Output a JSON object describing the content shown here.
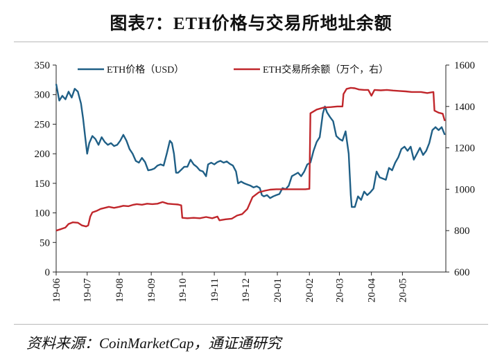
{
  "title": "图表7：ETH价格与交易所地址余额",
  "source": "资料来源：CoinMarketCap，通证通研究",
  "chart_data": {
    "type": "line",
    "x_ticks": [
      "19-06",
      "19-07",
      "19-08",
      "19-09",
      "19-10",
      "19-11",
      "19-12",
      "20-01",
      "20-02",
      "20-03",
      "20-04",
      "20-05"
    ],
    "x_range": [
      "2019-06-01",
      "2020-06-12"
    ],
    "y_left": {
      "min": 0,
      "max": 350,
      "ticks": [
        0,
        50,
        100,
        150,
        200,
        250,
        300,
        350
      ]
    },
    "y_right": {
      "min": 600,
      "max": 1600,
      "ticks": [
        600,
        800,
        1000,
        1200,
        1400,
        1600
      ]
    },
    "legend_position": "top",
    "series": [
      {
        "name": "ETH价格（USD）",
        "axis": "left",
        "color": "#1f5f86",
        "points": [
          [
            "2019-06-01",
            318
          ],
          [
            "2019-06-04",
            290
          ],
          [
            "2019-06-07",
            298
          ],
          [
            "2019-06-10",
            292
          ],
          [
            "2019-06-13",
            305
          ],
          [
            "2019-06-16",
            295
          ],
          [
            "2019-06-19",
            310
          ],
          [
            "2019-06-22",
            305
          ],
          [
            "2019-06-25",
            285
          ],
          [
            "2019-06-27",
            260
          ],
          [
            "2019-06-29",
            230
          ],
          [
            "2019-07-01",
            200
          ],
          [
            "2019-07-03",
            218
          ],
          [
            "2019-07-06",
            230
          ],
          [
            "2019-07-09",
            225
          ],
          [
            "2019-07-12",
            215
          ],
          [
            "2019-07-15",
            228
          ],
          [
            "2019-07-18",
            220
          ],
          [
            "2019-07-21",
            215
          ],
          [
            "2019-07-24",
            218
          ],
          [
            "2019-07-27",
            213
          ],
          [
            "2019-07-30",
            215
          ],
          [
            "2019-08-02",
            222
          ],
          [
            "2019-08-05",
            232
          ],
          [
            "2019-08-08",
            222
          ],
          [
            "2019-08-11",
            208
          ],
          [
            "2019-08-14",
            200
          ],
          [
            "2019-08-17",
            188
          ],
          [
            "2019-08-20",
            185
          ],
          [
            "2019-08-23",
            193
          ],
          [
            "2019-08-26",
            186
          ],
          [
            "2019-08-29",
            172
          ],
          [
            "2019-09-01",
            173
          ],
          [
            "2019-09-04",
            175
          ],
          [
            "2019-09-07",
            180
          ],
          [
            "2019-09-10",
            182
          ],
          [
            "2019-09-13",
            180
          ],
          [
            "2019-09-16",
            200
          ],
          [
            "2019-09-19",
            222
          ],
          [
            "2019-09-21",
            218
          ],
          [
            "2019-09-23",
            200
          ],
          [
            "2019-09-25",
            168
          ],
          [
            "2019-09-27",
            168
          ],
          [
            "2019-09-30",
            173
          ],
          [
            "2019-10-03",
            178
          ],
          [
            "2019-10-06",
            178
          ],
          [
            "2019-10-09",
            190
          ],
          [
            "2019-10-12",
            182
          ],
          [
            "2019-10-15",
            178
          ],
          [
            "2019-10-18",
            172
          ],
          [
            "2019-10-21",
            170
          ],
          [
            "2019-10-24",
            162
          ],
          [
            "2019-10-26",
            182
          ],
          [
            "2019-10-29",
            185
          ],
          [
            "2019-11-01",
            182
          ],
          [
            "2019-11-04",
            186
          ],
          [
            "2019-11-07",
            188
          ],
          [
            "2019-11-10",
            185
          ],
          [
            "2019-11-13",
            187
          ],
          [
            "2019-11-16",
            183
          ],
          [
            "2019-11-19",
            180
          ],
          [
            "2019-11-22",
            170
          ],
          [
            "2019-11-24",
            150
          ],
          [
            "2019-11-27",
            153
          ],
          [
            "2019-11-30",
            150
          ],
          [
            "2019-12-03",
            148
          ],
          [
            "2019-12-06",
            146
          ],
          [
            "2019-12-09",
            143
          ],
          [
            "2019-12-12",
            145
          ],
          [
            "2019-12-15",
            142
          ],
          [
            "2019-12-17",
            130
          ],
          [
            "2019-12-19",
            128
          ],
          [
            "2019-12-22",
            130
          ],
          [
            "2019-12-25",
            125
          ],
          [
            "2019-12-28",
            128
          ],
          [
            "2019-12-31",
            130
          ],
          [
            "2020-01-03",
            132
          ],
          [
            "2020-01-06",
            142
          ],
          [
            "2020-01-09",
            140
          ],
          [
            "2020-01-12",
            146
          ],
          [
            "2020-01-15",
            162
          ],
          [
            "2020-01-18",
            165
          ],
          [
            "2020-01-21",
            168
          ],
          [
            "2020-01-24",
            162
          ],
          [
            "2020-01-27",
            170
          ],
          [
            "2020-01-30",
            182
          ],
          [
            "2020-02-02",
            185
          ],
          [
            "2020-02-05",
            205
          ],
          [
            "2020-02-08",
            220
          ],
          [
            "2020-02-11",
            228
          ],
          [
            "2020-02-14",
            268
          ],
          [
            "2020-02-16",
            280
          ],
          [
            "2020-02-18",
            270
          ],
          [
            "2020-02-21",
            262
          ],
          [
            "2020-02-24",
            255
          ],
          [
            "2020-02-27",
            230
          ],
          [
            "2020-03-01",
            225
          ],
          [
            "2020-03-04",
            222
          ],
          [
            "2020-03-07",
            238
          ],
          [
            "2020-03-10",
            200
          ],
          [
            "2020-03-12",
            130
          ],
          [
            "2020-03-13",
            110
          ],
          [
            "2020-03-16",
            110
          ],
          [
            "2020-03-19",
            128
          ],
          [
            "2020-03-22",
            122
          ],
          [
            "2020-03-25",
            136
          ],
          [
            "2020-03-28",
            130
          ],
          [
            "2020-03-31",
            135
          ],
          [
            "2020-04-03",
            141
          ],
          [
            "2020-04-06",
            170
          ],
          [
            "2020-04-09",
            160
          ],
          [
            "2020-04-12",
            158
          ],
          [
            "2020-04-15",
            156
          ],
          [
            "2020-04-18",
            176
          ],
          [
            "2020-04-21",
            172
          ],
          [
            "2020-04-24",
            185
          ],
          [
            "2020-04-27",
            194
          ],
          [
            "2020-04-30",
            208
          ],
          [
            "2020-05-03",
            212
          ],
          [
            "2020-05-06",
            205
          ],
          [
            "2020-05-09",
            212
          ],
          [
            "2020-05-12",
            190
          ],
          [
            "2020-05-15",
            200
          ],
          [
            "2020-05-18",
            210
          ],
          [
            "2020-05-21",
            198
          ],
          [
            "2020-05-24",
            205
          ],
          [
            "2020-05-27",
            218
          ],
          [
            "2020-05-30",
            240
          ],
          [
            "2020-06-02",
            245
          ],
          [
            "2020-06-05",
            240
          ],
          [
            "2020-06-08",
            245
          ],
          [
            "2020-06-11",
            232
          ]
        ]
      },
      {
        "name": "ETH交易所余额（万个，右）",
        "axis": "right",
        "color": "#c0262b",
        "points": [
          [
            "2019-06-01",
            800
          ],
          [
            "2019-06-06",
            808
          ],
          [
            "2019-06-10",
            815
          ],
          [
            "2019-06-13",
            832
          ],
          [
            "2019-06-17",
            840
          ],
          [
            "2019-06-22",
            838
          ],
          [
            "2019-06-26",
            825
          ],
          [
            "2019-06-30",
            820
          ],
          [
            "2019-07-02",
            825
          ],
          [
            "2019-07-04",
            868
          ],
          [
            "2019-07-06",
            888
          ],
          [
            "2019-07-10",
            895
          ],
          [
            "2019-07-14",
            905
          ],
          [
            "2019-07-18",
            910
          ],
          [
            "2019-07-22",
            915
          ],
          [
            "2019-07-27",
            910
          ],
          [
            "2019-08-01",
            915
          ],
          [
            "2019-08-05",
            920
          ],
          [
            "2019-08-10",
            918
          ],
          [
            "2019-08-14",
            924
          ],
          [
            "2019-08-18",
            928
          ],
          [
            "2019-08-23",
            925
          ],
          [
            "2019-08-28",
            930
          ],
          [
            "2019-09-02",
            928
          ],
          [
            "2019-09-07",
            930
          ],
          [
            "2019-09-12",
            938
          ],
          [
            "2019-09-17",
            930
          ],
          [
            "2019-09-22",
            928
          ],
          [
            "2019-09-27",
            926
          ],
          [
            "2019-09-30",
            922
          ],
          [
            "2019-10-01",
            862
          ],
          [
            "2019-10-06",
            860
          ],
          [
            "2019-10-12",
            862
          ],
          [
            "2019-10-18",
            860
          ],
          [
            "2019-10-24",
            866
          ],
          [
            "2019-10-30",
            860
          ],
          [
            "2019-11-04",
            868
          ],
          [
            "2019-11-06",
            850
          ],
          [
            "2019-11-12",
            855
          ],
          [
            "2019-11-18",
            858
          ],
          [
            "2019-11-23",
            873
          ],
          [
            "2019-11-28",
            880
          ],
          [
            "2019-12-03",
            905
          ],
          [
            "2019-12-08",
            962
          ],
          [
            "2019-12-14",
            985
          ],
          [
            "2019-12-20",
            993
          ],
          [
            "2019-12-25",
            998
          ],
          [
            "2019-12-31",
            1000
          ],
          [
            "2020-01-15",
            1000
          ],
          [
            "2020-01-28",
            1000
          ],
          [
            "2020-02-01",
            1002
          ],
          [
            "2020-02-02",
            1367
          ],
          [
            "2020-02-08",
            1385
          ],
          [
            "2020-02-15",
            1395
          ],
          [
            "2020-02-22",
            1397
          ],
          [
            "2020-02-28",
            1400
          ],
          [
            "2020-03-04",
            1400
          ],
          [
            "2020-03-05",
            1460
          ],
          [
            "2020-03-08",
            1485
          ],
          [
            "2020-03-12",
            1490
          ],
          [
            "2020-03-16",
            1488
          ],
          [
            "2020-03-20",
            1482
          ],
          [
            "2020-03-25",
            1480
          ],
          [
            "2020-03-29",
            1480
          ],
          [
            "2020-04-01",
            1452
          ],
          [
            "2020-04-04",
            1480
          ],
          [
            "2020-04-10",
            1478
          ],
          [
            "2020-04-16",
            1480
          ],
          [
            "2020-04-22",
            1477
          ],
          [
            "2020-04-28",
            1475
          ],
          [
            "2020-05-04",
            1473
          ],
          [
            "2020-05-10",
            1470
          ],
          [
            "2020-05-14",
            1470
          ],
          [
            "2020-05-19",
            1470
          ],
          [
            "2020-05-25",
            1465
          ],
          [
            "2020-05-31",
            1470
          ],
          [
            "2020-06-01",
            1380
          ],
          [
            "2020-06-05",
            1370
          ],
          [
            "2020-06-09",
            1365
          ],
          [
            "2020-06-11",
            1330
          ]
        ]
      }
    ]
  }
}
